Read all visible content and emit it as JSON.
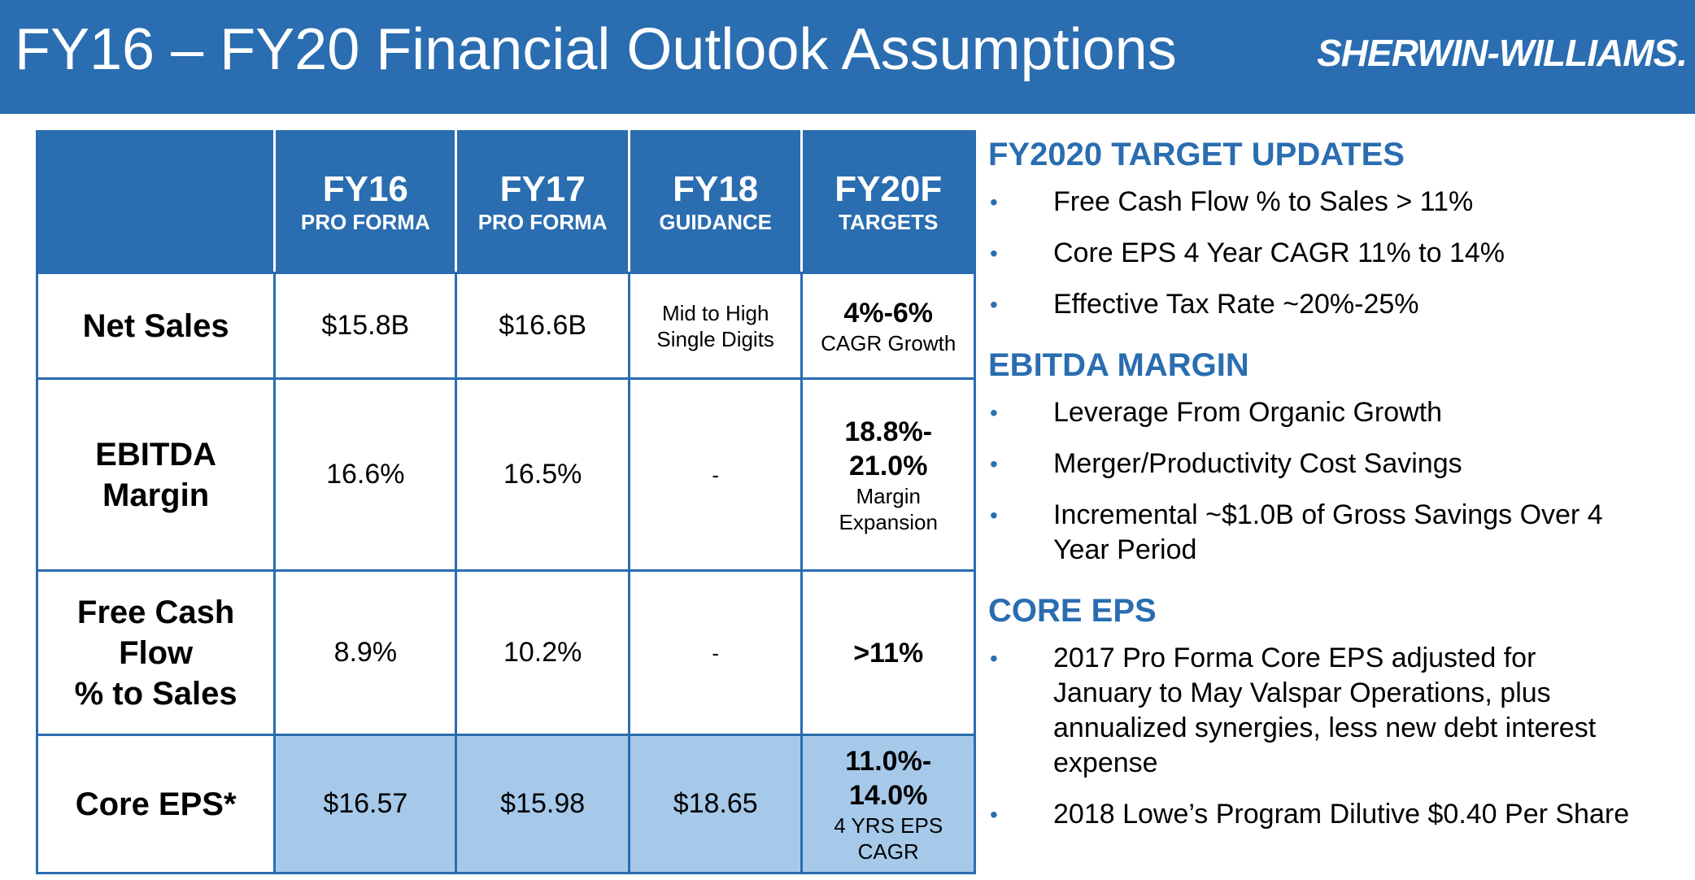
{
  "header": {
    "title": "FY16 – FY20 Financial Outlook Assumptions",
    "logo": "SHERWIN-WILLIAMS."
  },
  "table": {
    "columns": [
      {
        "year": "FY16",
        "sub": "PRO FORMA"
      },
      {
        "year": "FY17",
        "sub": "PRO FORMA"
      },
      {
        "year": "FY18",
        "sub": "GUIDANCE"
      },
      {
        "year": "FY20F",
        "sub": "TARGETS"
      }
    ],
    "rows": [
      {
        "label": "Net Sales",
        "fy16": "$15.8B",
        "fy17": "$16.6B",
        "fy18_line1": "Mid to High",
        "fy18_line2": "Single Digits",
        "fy20_big": "4%-6%",
        "fy20_small": "CAGR Growth"
      },
      {
        "label_line1": "EBITDA",
        "label_line2": "Margin",
        "fy16": "16.6%",
        "fy17": "16.5%",
        "fy18": "-",
        "fy20_big1": "18.8%-",
        "fy20_big2": "21.0%",
        "fy20_small1": "Margin",
        "fy20_small2": "Expansion"
      },
      {
        "label_line1": "Free Cash",
        "label_line2": "Flow",
        "label_line3": "% to Sales",
        "fy16": "8.9%",
        "fy17": "10.2%",
        "fy18": "-",
        "fy20": ">11%"
      },
      {
        "label": "Core EPS*",
        "fy16": "$16.57",
        "fy17": "$15.98",
        "fy18": "$18.65",
        "fy20_big1": "11.0%-",
        "fy20_big2": "14.0%",
        "fy20_small1": "4 YRS EPS",
        "fy20_small2": "CAGR"
      }
    ]
  },
  "panel": {
    "sections": [
      {
        "title": "FY2020 TARGET UPDATES",
        "bullets": [
          "Free Cash Flow % to Sales > 11%",
          "Core EPS 4 Year CAGR 11% to 14%",
          "Effective Tax Rate ~20%-25%"
        ]
      },
      {
        "title": "EBITDA MARGIN",
        "bullets": [
          "Leverage From Organic Growth",
          "Merger/Productivity Cost Savings",
          "Incremental ~$1.0B of Gross Savings Over 4 Year Period"
        ]
      },
      {
        "title": "CORE EPS",
        "bullets": [
          "2017 Pro Forma Core EPS adjusted for January to May Valspar Operations, plus annualized synergies, less new debt interest expense",
          "2018 Lowe’s Program Dilutive $0.40 Per Share"
        ]
      }
    ],
    "bullet_glyph": "•"
  },
  "colors": {
    "brand_blue": "#2a6db0",
    "highlight_row": "#a6c9ea"
  }
}
